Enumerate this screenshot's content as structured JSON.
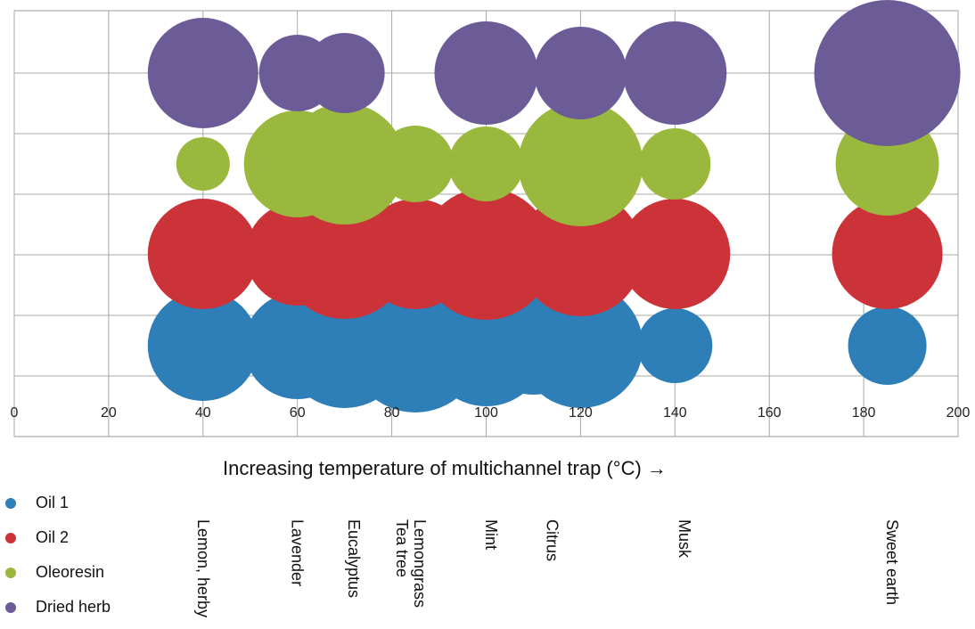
{
  "chart_data": {
    "type": "bubble",
    "title": "",
    "xlabel": "Increasing temperature of multichannel trap (°C) →",
    "ylabel": "",
    "xlim": [
      0,
      200
    ],
    "x_ticks": [
      0,
      20,
      40,
      60,
      80,
      100,
      120,
      140,
      160,
      180,
      200
    ],
    "grid": true,
    "legend_placement": "bottom-left",
    "series": [
      {
        "name": "Oil 1",
        "color": "#2E7EB8",
        "row": 1,
        "points": [
          {
            "x": 40,
            "size": 62
          },
          {
            "x": 60,
            "size": 60
          },
          {
            "x": 70,
            "size": 70
          },
          {
            "x": 85,
            "size": 75
          },
          {
            "x": 100,
            "size": 68
          },
          {
            "x": 110,
            "size": 55
          },
          {
            "x": 120,
            "size": 70
          },
          {
            "x": 140,
            "size": 42
          },
          {
            "x": 185,
            "size": 44
          }
        ]
      },
      {
        "name": "Oil 2",
        "color": "#CC3339",
        "row": 2,
        "points": [
          {
            "x": 40,
            "size": 62
          },
          {
            "x": 60,
            "size": 58
          },
          {
            "x": 70,
            "size": 73
          },
          {
            "x": 85,
            "size": 62
          },
          {
            "x": 100,
            "size": 74
          },
          {
            "x": 120,
            "size": 70
          },
          {
            "x": 140,
            "size": 62
          },
          {
            "x": 185,
            "size": 62
          }
        ]
      },
      {
        "name": "Oleoresin",
        "color": "#9BB83E",
        "row": 3,
        "points": [
          {
            "x": 40,
            "size": 30
          },
          {
            "x": 60,
            "size": 60
          },
          {
            "x": 70,
            "size": 68
          },
          {
            "x": 85,
            "size": 43
          },
          {
            "x": 100,
            "size": 42
          },
          {
            "x": 120,
            "size": 70
          },
          {
            "x": 140,
            "size": 40
          },
          {
            "x": 185,
            "size": 58
          }
        ]
      },
      {
        "name": "Dried herb",
        "color": "#6B5B97",
        "row": 4,
        "points": [
          {
            "x": 40,
            "size": 62
          },
          {
            "x": 60,
            "size": 43
          },
          {
            "x": 70,
            "size": 45
          },
          {
            "x": 100,
            "size": 58
          },
          {
            "x": 120,
            "size": 52
          },
          {
            "x": 140,
            "size": 58
          },
          {
            "x": 185,
            "size": 82
          }
        ]
      }
    ],
    "annotations": [
      {
        "x": 40,
        "text": "Lemon, herby"
      },
      {
        "x": 60,
        "text": "Lavender"
      },
      {
        "x": 72,
        "text": "Eucalyptus"
      },
      {
        "x": 84,
        "text": "Lemongrass\nTea tree"
      },
      {
        "x": 101,
        "text": "Mint"
      },
      {
        "x": 114,
        "text": "Citrus"
      },
      {
        "x": 142,
        "text": "Musk"
      },
      {
        "x": 186,
        "text": "Sweet earth"
      }
    ]
  }
}
